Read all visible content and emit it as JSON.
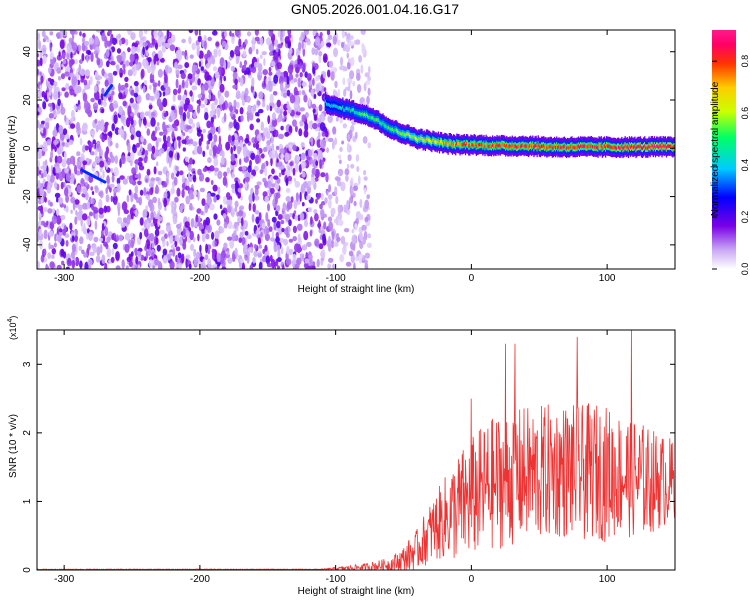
{
  "title": "GN05.2026.001.04.16.G17",
  "chart_data": [
    {
      "type": "heatmap",
      "xlabel": "Height of straight line (km)",
      "ylabel": "Frequency (Hz)",
      "xlim": [
        -320,
        150
      ],
      "ylim": [
        -50,
        49
      ],
      "xticks": [
        -300,
        -200,
        -100,
        0,
        100
      ],
      "yticks": [
        -40,
        -20,
        0,
        20,
        40
      ],
      "colorbar": {
        "label": "Normalized spectral amplitude",
        "range": [
          0,
          0.92
        ],
        "ticks": [
          0.0,
          0.2,
          0.4,
          0.6,
          0.8
        ],
        "tick_labels": [
          "0.0",
          "0.2",
          "0.4",
          "0.6",
          "0.8"
        ],
        "colormap": "white-purple-blue-cyan-green-yellow-orange-red-magenta"
      },
      "regions": [
        {
          "x_range": [
            -320,
            -105
          ],
          "freq_range": [
            -50,
            49
          ],
          "amplitude": "0.0-0.2",
          "pattern": "dense noise"
        },
        {
          "x_range": [
            -105,
            -75
          ],
          "freq_range": [
            -50,
            49
          ],
          "amplitude": "0.0-0.1",
          "pattern": "sparse noise"
        }
      ],
      "signal_track": {
        "x": [
          -108,
          -100,
          -90,
          -80,
          -70,
          -60,
          -50,
          -40,
          -30,
          -20,
          -10,
          0,
          20,
          40,
          60,
          80,
          100,
          120,
          150
        ],
        "frequency": [
          19,
          17,
          16,
          14,
          12,
          8,
          6,
          4,
          3,
          2,
          1.5,
          1.5,
          1,
          1,
          0.5,
          0.5,
          0.5,
          0.5,
          0.5
        ],
        "peak_amplitude": [
          0.4,
          0.45,
          0.5,
          0.55,
          0.55,
          0.55,
          0.6,
          0.65,
          0.7,
          0.75,
          0.8,
          0.8,
          0.85,
          0.85,
          0.85,
          0.85,
          0.85,
          0.9,
          0.9
        ]
      },
      "grid": false
    },
    {
      "type": "line",
      "xlabel": "Height of straight line (km)",
      "ylabel": "SNR (10 * v/v)",
      "y_multiplier": "(x10^4)",
      "y_multiplier_base": "(x10",
      "y_multiplier_exp": "4",
      "y_multiplier_close": ")",
      "xlim": [
        -320,
        150
      ],
      "ylim": [
        0,
        3.5
      ],
      "xticks": [
        -300,
        -200,
        -100,
        0,
        100
      ],
      "yticks": [
        0,
        1,
        2,
        3
      ],
      "color": "#ee3333",
      "envelope": {
        "x": [
          -320,
          -110,
          -100,
          -80,
          -60,
          -50,
          -40,
          -30,
          -20,
          -10,
          0,
          10,
          20,
          30,
          40,
          50,
          60,
          70,
          80,
          90,
          100,
          110,
          120,
          130,
          140,
          150
        ],
        "mean": [
          0.01,
          0.01,
          0.02,
          0.04,
          0.08,
          0.15,
          0.3,
          0.55,
          0.75,
          0.9,
          1.05,
          1.2,
          1.3,
          1.35,
          1.4,
          1.4,
          1.45,
          1.45,
          1.4,
          1.45,
          1.4,
          1.4,
          1.35,
          1.3,
          1.3,
          1.3
        ],
        "spread": [
          0.005,
          0.005,
          0.02,
          0.05,
          0.1,
          0.2,
          0.3,
          0.45,
          0.6,
          0.8,
          0.9,
          0.95,
          1.0,
          1.0,
          1.0,
          1.0,
          1.0,
          1.0,
          1.0,
          1.0,
          1.0,
          0.9,
          0.9,
          0.8,
          0.7,
          0.6
        ]
      },
      "peaks": [
        {
          "x": 0,
          "y": 2.5
        },
        {
          "x": 25,
          "y": 3.3
        },
        {
          "x": 32,
          "y": 3.3
        },
        {
          "x": 78,
          "y": 3.4
        },
        {
          "x": 118,
          "y": 3.5
        }
      ],
      "grid": false
    }
  ]
}
